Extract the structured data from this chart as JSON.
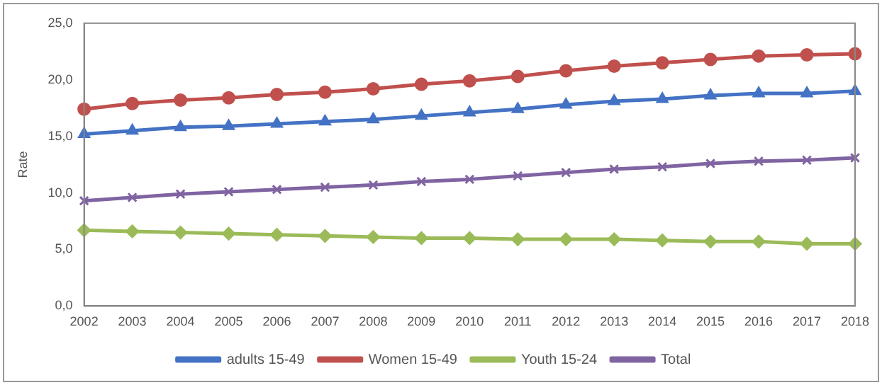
{
  "chart_data": {
    "type": "line",
    "ylabel": "Rate",
    "categories": [
      "2002",
      "2003",
      "2004",
      "2005",
      "2006",
      "2007",
      "2008",
      "2009",
      "2010",
      "2011",
      "2012",
      "2013",
      "2014",
      "2015",
      "2016",
      "2017",
      "2018"
    ],
    "series": [
      {
        "name": "adults 15-49",
        "color": "#4472c4",
        "marker": "triangle",
        "values": [
          15.2,
          15.5,
          15.8,
          15.9,
          16.1,
          16.3,
          16.5,
          16.8,
          17.1,
          17.4,
          17.8,
          18.1,
          18.3,
          18.6,
          18.8,
          18.8,
          19.0
        ]
      },
      {
        "name": "Women 15-49",
        "color": "#c0504d",
        "marker": "circle",
        "values": [
          17.4,
          17.9,
          18.2,
          18.4,
          18.7,
          18.9,
          19.2,
          19.6,
          19.9,
          20.3,
          20.8,
          21.2,
          21.5,
          21.8,
          22.1,
          22.2,
          22.3
        ]
      },
      {
        "name": "Youth 15-24",
        "color": "#9bbb59",
        "marker": "diamond",
        "values": [
          6.7,
          6.6,
          6.5,
          6.4,
          6.3,
          6.2,
          6.1,
          6.0,
          6.0,
          5.9,
          5.9,
          5.9,
          5.8,
          5.7,
          5.7,
          5.5,
          5.5
        ]
      },
      {
        "name": "Total",
        "color": "#8064a2",
        "marker": "cross",
        "values": [
          9.3,
          9.6,
          9.9,
          10.1,
          10.3,
          10.5,
          10.7,
          11.0,
          11.2,
          11.5,
          11.8,
          12.1,
          12.3,
          12.6,
          12.8,
          12.9,
          13.1
        ]
      }
    ],
    "ylim": [
      0,
      25
    ],
    "yticks": [
      {
        "value": 0,
        "label": "0,0"
      },
      {
        "value": 5,
        "label": "5,0"
      },
      {
        "value": 10,
        "label": "10,0"
      },
      {
        "value": 15,
        "label": "15,0"
      },
      {
        "value": 20,
        "label": "20,0"
      },
      {
        "value": 25,
        "label": "25,0"
      }
    ],
    "grid": false,
    "legend": "bottom",
    "line_style": "solid"
  }
}
